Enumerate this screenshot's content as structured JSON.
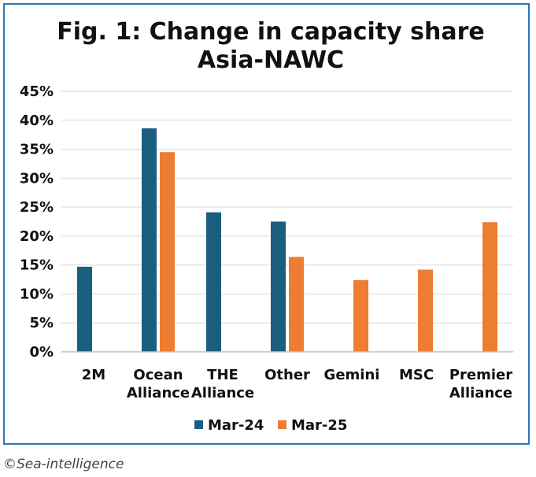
{
  "chart_data": {
    "type": "bar",
    "title_lines": [
      "Fig. 1: Change in capacity share",
      "Asia-NAWC"
    ],
    "categories": [
      [
        "2M"
      ],
      [
        "Ocean",
        "Alliance"
      ],
      [
        "THE",
        "Alliance"
      ],
      [
        "Other"
      ],
      [
        "Gemini"
      ],
      [
        "MSC"
      ],
      [
        "Premier",
        "Alliance"
      ]
    ],
    "series": [
      {
        "name": "Mar-24",
        "color": "#1b5f80",
        "values": [
          14.7,
          38.6,
          24.1,
          22.5,
          null,
          null,
          null
        ]
      },
      {
        "name": "Mar-25",
        "color": "#ed7d31",
        "values": [
          null,
          34.5,
          null,
          16.4,
          12.4,
          14.2,
          22.4
        ]
      }
    ],
    "y_ticks": [
      "0%",
      "5%",
      "10%",
      "15%",
      "20%",
      "25%",
      "30%",
      "35%",
      "40%",
      "45%"
    ],
    "ylim": [
      0,
      45
    ],
    "y_step": 5,
    "grid": true,
    "legend_position": "bottom"
  },
  "source": "©Sea-intelligence"
}
